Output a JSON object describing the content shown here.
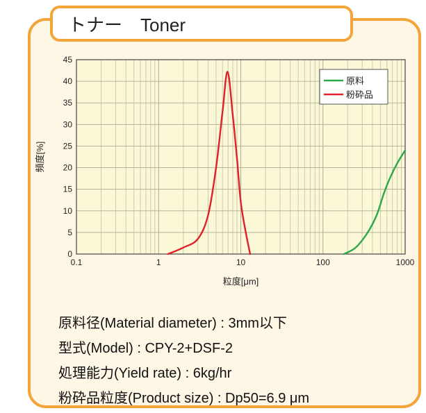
{
  "header": {
    "title": "トナー　Toner"
  },
  "chart_data": {
    "type": "line",
    "xscale": "log",
    "xlim": [
      0.1,
      1000
    ],
    "ylim": [
      0,
      45
    ],
    "grid": true,
    "xlabel": "粒度[μm]",
    "ylabel": "頻度[%]",
    "x_ticks": [
      "0.1",
      "1",
      "10",
      "100",
      "1000"
    ],
    "y_ticks": [
      "0",
      "5",
      "10",
      "15",
      "20",
      "25",
      "30",
      "35",
      "40",
      "45"
    ],
    "legend_position": "top-right",
    "series": [
      {
        "name": "原料",
        "color": "#2aa84a",
        "points": [
          [
            180,
            0
          ],
          [
            250,
            1.5
          ],
          [
            350,
            5
          ],
          [
            450,
            9
          ],
          [
            550,
            14
          ],
          [
            650,
            17.5
          ],
          [
            800,
            21
          ],
          [
            1000,
            24
          ]
        ]
      },
      {
        "name": "粉砕品",
        "color": "#e0202a",
        "points": [
          [
            1.3,
            0
          ],
          [
            2,
            1.5
          ],
          [
            3,
            3.5
          ],
          [
            4,
            9
          ],
          [
            5,
            20
          ],
          [
            6,
            33
          ],
          [
            6.9,
            42.2
          ],
          [
            8,
            32
          ],
          [
            9,
            22
          ],
          [
            10,
            12
          ],
          [
            11.5,
            5
          ],
          [
            13,
            0
          ]
        ]
      }
    ]
  },
  "specs": [
    "原料径(Material diameter) : 3mm以下",
    "型式(Model) : CPY-2+DSF-2",
    "処理能力(Yield rate) : 6kg/hr",
    "粉砕品粒度(Product size) :  Dp50=6.9 μm"
  ]
}
